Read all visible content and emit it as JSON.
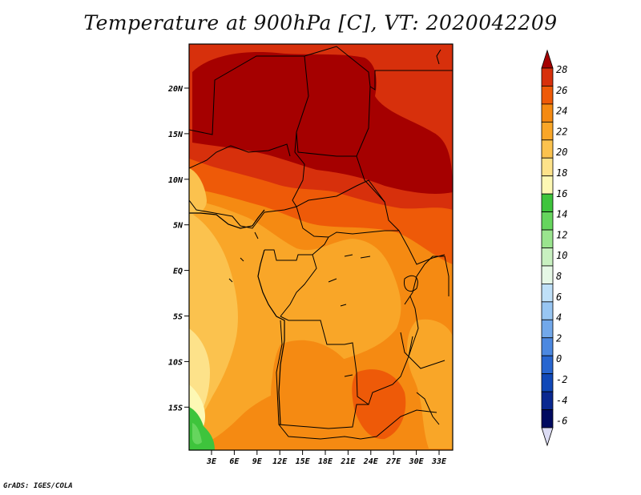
{
  "title": "Temperature at 900hPa [C], VT: 2020042209",
  "credit": "GrADS: IGES/COLA",
  "map": {
    "lat_labels": [
      "20N",
      "15N",
      "10N",
      "5N",
      "EQ",
      "5S",
      "10S",
      "15S"
    ],
    "lon_labels": [
      "3E",
      "6E",
      "9E",
      "12E",
      "15E",
      "18E",
      "21E",
      "24E",
      "27E",
      "30E",
      "33E"
    ],
    "field": "Temperature at 900hPa",
    "units": "C"
  },
  "colorbar": {
    "labels": [
      "28",
      "26",
      "24",
      "22",
      "20",
      "18",
      "16",
      "14",
      "12",
      "10",
      "8",
      "6",
      "4",
      "2",
      "0",
      "-2",
      "-4",
      "-6"
    ],
    "colors": [
      "#a50000",
      "#d7300c",
      "#ee5a08",
      "#f58a12",
      "#f9a628",
      "#fbc24e",
      "#fde28a",
      "#fdf8b4",
      "#3ec43c",
      "#66d55e",
      "#9ae48e",
      "#c8f0c0",
      "#e6f8e6",
      "#bfe0f8",
      "#98c6f2",
      "#72a8ea",
      "#4c88e0",
      "#2866d0",
      "#1048b8",
      "#0a2890",
      "#000a60",
      "#dcdcf4"
    ]
  }
}
